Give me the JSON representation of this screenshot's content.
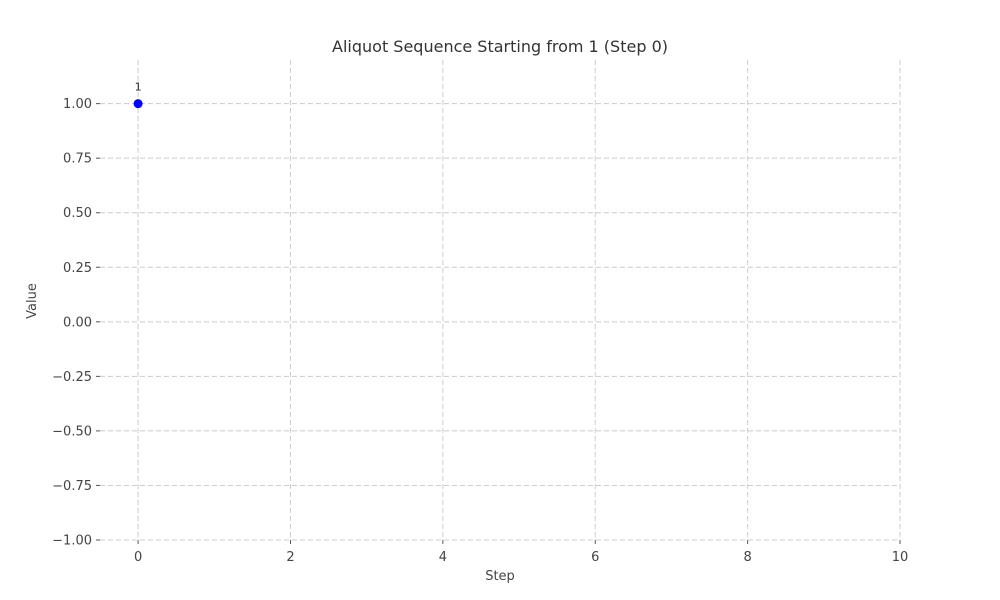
{
  "chart_data": {
    "type": "scatter",
    "title": "Aliquot Sequence Starting from 1 (Step 0)",
    "xlabel": "Step",
    "ylabel": "Value",
    "xlim": [
      -0.5,
      10
    ],
    "ylim": [
      -1.0,
      1.2
    ],
    "xticks": [
      0,
      2,
      4,
      6,
      8,
      10
    ],
    "xtick_labels": [
      "0",
      "2",
      "4",
      "6",
      "8",
      "10"
    ],
    "yticks": [
      1.0,
      0.75,
      0.5,
      0.25,
      0.0,
      -0.25,
      -0.5,
      -0.75,
      -1.0
    ],
    "ytick_labels": [
      "1.00",
      "0.75",
      "0.50",
      "0.25",
      "0.00",
      "−0.25",
      "−0.50",
      "−0.75",
      "−1.00"
    ],
    "grid": true,
    "series": [
      {
        "color": "#0000ff",
        "points": [
          {
            "x": 0,
            "y": 1,
            "label": "1"
          }
        ]
      }
    ]
  }
}
